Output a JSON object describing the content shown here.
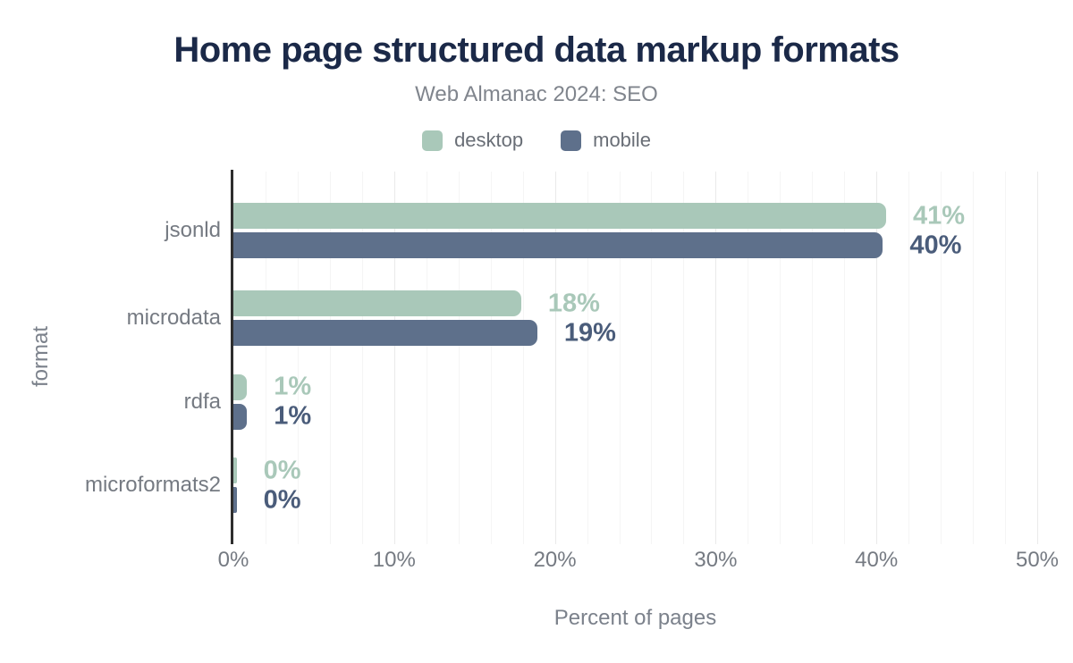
{
  "title": "Home page structured data markup formats",
  "subtitle": "Web Almanac 2024: SEO",
  "legend": [
    {
      "label": "desktop",
      "color": "#a9c8b9"
    },
    {
      "label": "mobile",
      "color": "#5e708b"
    }
  ],
  "colors": {
    "title": "#1b2948",
    "subtitle": "#80858d",
    "axis_line": "#2e2e2e",
    "tick_text": "#757a82",
    "desktop": "#a9c8b9",
    "mobile": "#5e708b",
    "mobile_label": "#4a5c7a",
    "grid_minor": "#f5f5f5",
    "grid_major": "#eaeaea"
  },
  "chart_data": {
    "type": "bar",
    "orientation": "horizontal",
    "title": "Home page structured data markup formats",
    "subtitle": "Web Almanac 2024: SEO",
    "xlabel": "Percent of pages",
    "ylabel": "format",
    "xlim": [
      0,
      50
    ],
    "x_ticks": [
      {
        "value": 0,
        "label": "0%"
      },
      {
        "value": 10,
        "label": "10%"
      },
      {
        "value": 20,
        "label": "20%"
      },
      {
        "value": 30,
        "label": "30%"
      },
      {
        "value": 40,
        "label": "40%"
      },
      {
        "value": 50,
        "label": "50%"
      }
    ],
    "grid": {
      "vertical_minor_step": 2,
      "vertical_major_step": 10,
      "horizontal": false
    },
    "legend_position": "top-center",
    "categories": [
      "jsonld",
      "microdata",
      "rdfa",
      "microformats2"
    ],
    "series": [
      {
        "name": "desktop",
        "color": "#a9c8b9",
        "label_color": "#a9c8b9",
        "values": [
          40.6,
          17.9,
          0.85,
          0.2
        ],
        "labels": [
          "41%",
          "18%",
          "1%",
          "0%"
        ]
      },
      {
        "name": "mobile",
        "color": "#5e708b",
        "label_color": "#4a5c7a",
        "values": [
          40.4,
          18.9,
          0.85,
          0.2
        ],
        "labels": [
          "40%",
          "19%",
          "1%",
          "0%"
        ]
      }
    ]
  }
}
